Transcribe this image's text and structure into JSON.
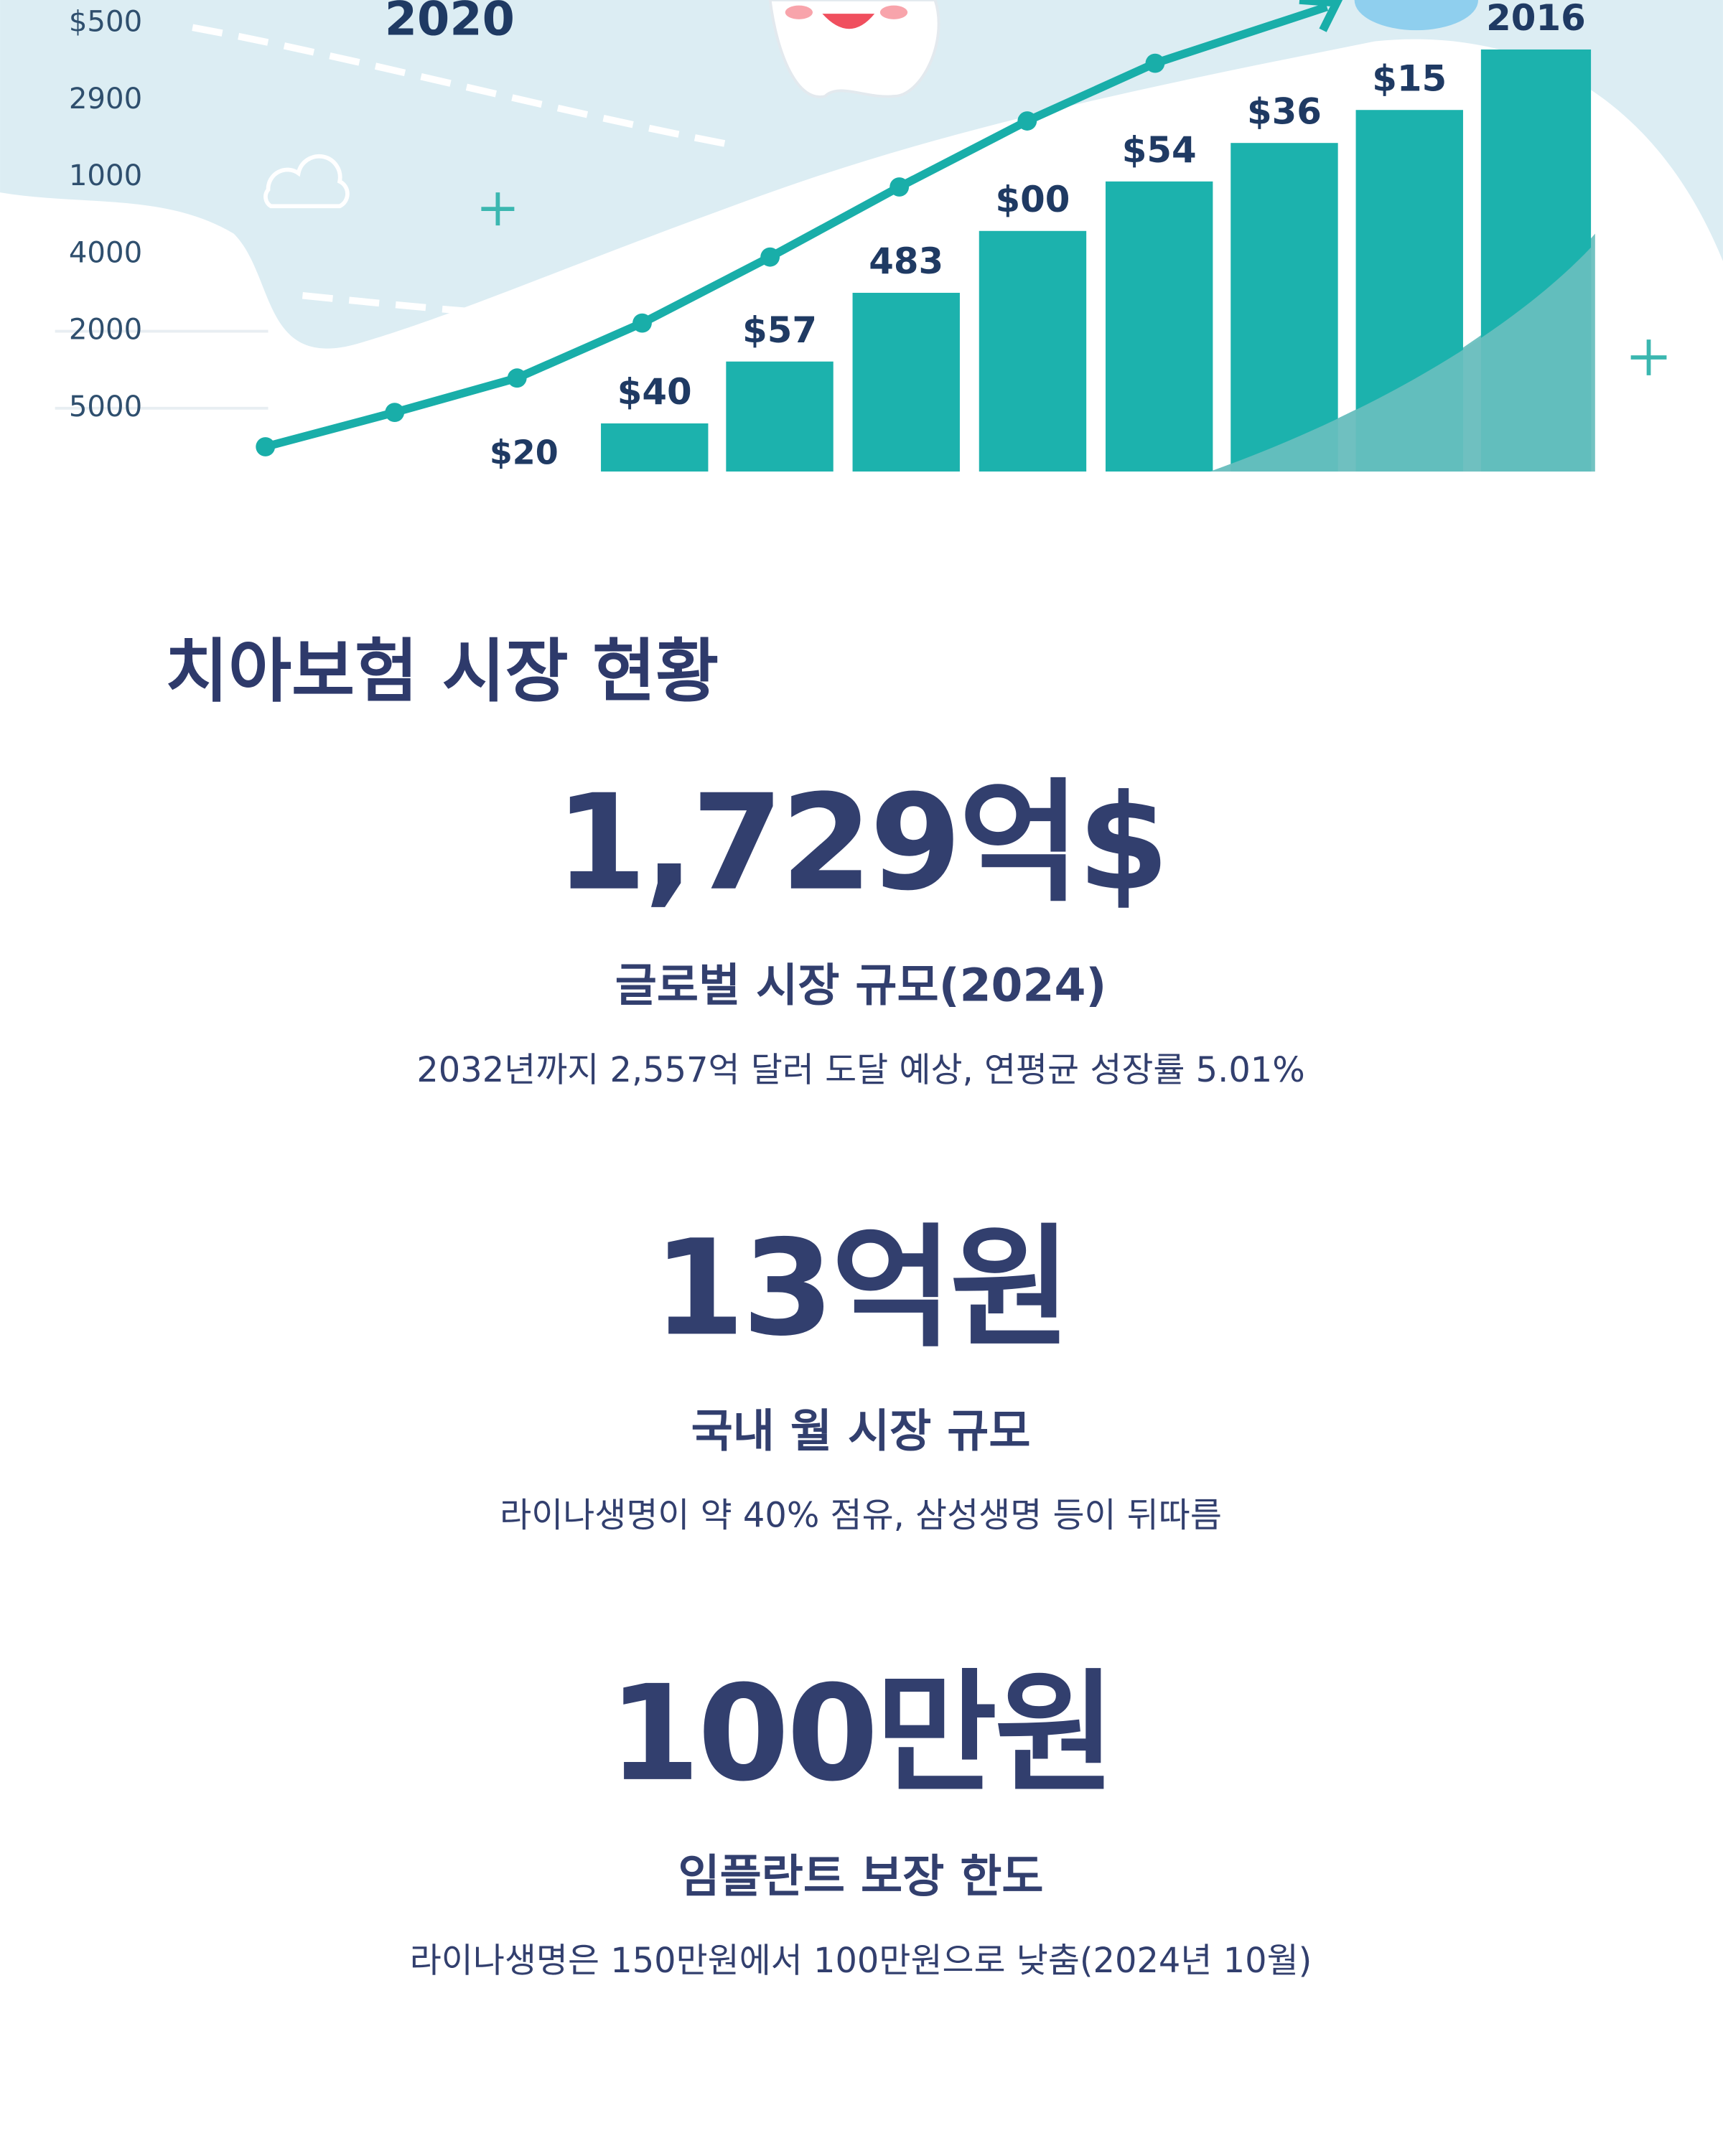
{
  "illustration": {
    "year_label": "2020",
    "y_labels": [
      "$500",
      "2900",
      "1000",
      "4000",
      "2000",
      "5000"
    ],
    "point_label": "$20",
    "bar_labels": [
      "$40",
      "$57",
      "483",
      "$00",
      "$54",
      "$36",
      "$15",
      "2016"
    ]
  },
  "section_title": "치아보험 시장 현황",
  "stats": [
    {
      "value": "1,729억$",
      "label": "글로벌 시장 규모(2024)",
      "description": "2032년까지 2,557억 달러 도달 예상, 연평균 성장률 5.01%"
    },
    {
      "value": "13억원",
      "label": "국내 월 시장 규모",
      "description": "라이나생명이 약 40% 점유, 삼성생명 등이 뒤따름"
    },
    {
      "value": "100만원",
      "label": "임플란트 보장 한도",
      "description": "라이나생명은 150만원에서 100만원으로 낮춤(2024년 10월)"
    }
  ]
}
